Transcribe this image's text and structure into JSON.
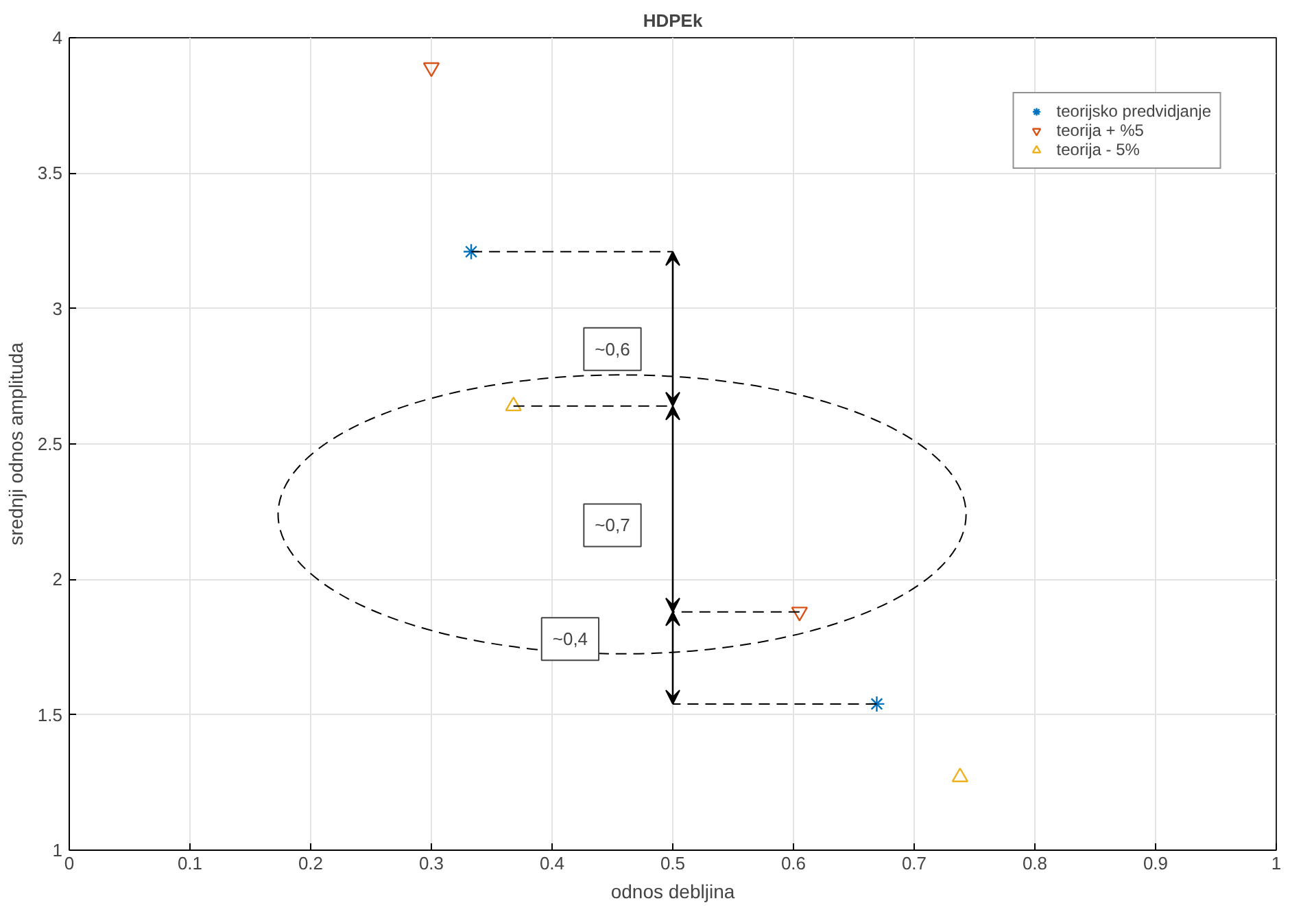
{
  "chart_data": {
    "type": "scatter",
    "title": "HDPEk",
    "xlabel": "odnos debljina",
    "ylabel": "srednji odnos amplituda",
    "series": [
      {
        "name": "teorijsko predvidjanje",
        "color": "#0072bd",
        "marker": "cross",
        "x": [
          0.333,
          0.669
        ],
        "values": [
          3.21,
          1.54
        ]
      },
      {
        "name": "teorija + %5",
        "color": "#d95319",
        "marker": "triangle_down",
        "x": [
          0.3,
          0.605
        ],
        "values": [
          3.89,
          1.88
        ]
      },
      {
        "name": "teorija - 5%",
        "color": "#edb120",
        "marker": "triangle",
        "x": [
          0.368,
          0.738
        ],
        "values": [
          2.64,
          1.27
        ]
      }
    ],
    "xlim": [
      0,
      1
    ],
    "xticks": [
      0,
      0.1,
      0.2,
      0.3,
      0.4,
      0.5,
      0.6,
      0.7,
      0.8,
      0.9,
      1
    ],
    "ylim": [
      1,
      4
    ],
    "yticks": [
      1,
      1.5,
      2,
      2.5,
      3,
      3.5,
      4
    ],
    "annotations": [
      "~0,6",
      "~0,7",
      "~0,4"
    ],
    "grid": true,
    "legend": "top right"
  }
}
